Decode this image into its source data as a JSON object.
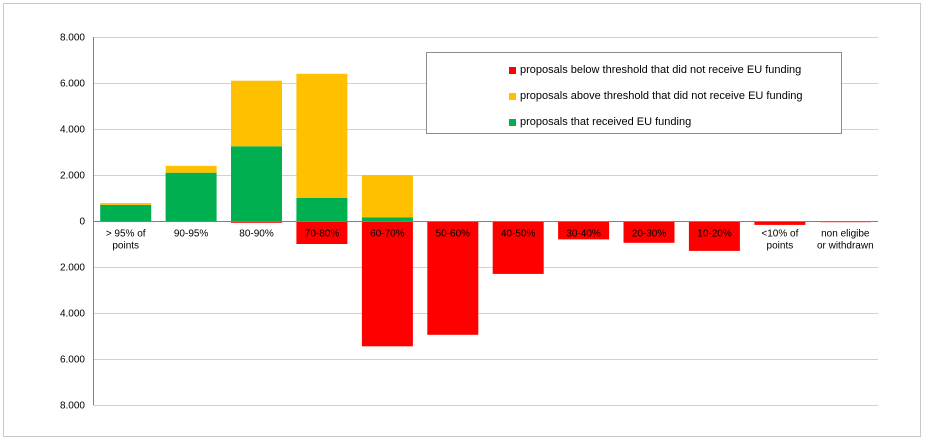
{
  "chart_data": {
    "type": "bar",
    "stacked": true,
    "categories": [
      "> 95% of points",
      "90-95%",
      "80-90%",
      "70-80%",
      "60-70%",
      "50-60%",
      "40-50%",
      "30-40%",
      "20-30%",
      "10-20%",
      "<10% of points",
      "non eligibe or withdrawn"
    ],
    "series": [
      {
        "name": "proposals that received EU funding",
        "color": "#00b050",
        "values": [
          700,
          2100,
          3250,
          1000,
          150,
          0,
          0,
          0,
          0,
          0,
          0,
          0
        ]
      },
      {
        "name": "proposals above threshold that did not receive EU funding",
        "color": "#ffc000",
        "values": [
          80,
          300,
          2850,
          5400,
          1850,
          0,
          0,
          0,
          0,
          0,
          0,
          0
        ]
      },
      {
        "name": "proposals below threshold that did not receive EU funding",
        "color": "#ff0000",
        "values": [
          0,
          0,
          -80,
          -1000,
          -5450,
          -4950,
          -2300,
          -800,
          -950,
          -1300,
          -170,
          -50
        ]
      }
    ],
    "y_tick_labels": [
      "8.000",
      "6.000",
      "4.000",
      "2.000",
      "0",
      "2.000",
      "4.000",
      "6.000",
      "8.000"
    ],
    "y_tick_values": [
      8000,
      6000,
      4000,
      2000,
      0,
      -2000,
      -4000,
      -6000,
      -8000
    ],
    "ylim": [
      -8000,
      8000
    ],
    "grid": true,
    "legend_position": "top-right",
    "legend_order": [
      2,
      1,
      0
    ],
    "title": "",
    "xlabel": "",
    "ylabel": ""
  }
}
